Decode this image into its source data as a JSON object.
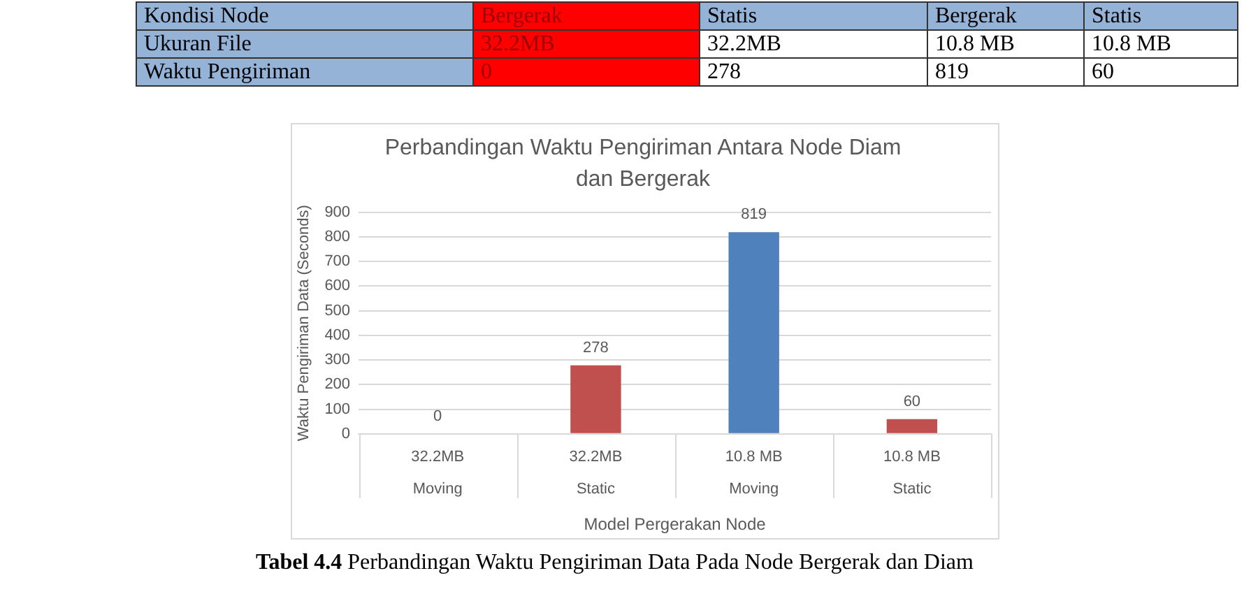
{
  "chart_data": [
    {
      "type": "other",
      "annotations": [
        "Kondisi Node",
        "Bergerak",
        "Statis",
        "Bergerak",
        "Statis",
        "Ukuran File",
        "32.2MB",
        "32.2MB",
        "10.8 MB",
        "10.8 MB",
        "Waktu Pengiriman",
        "0",
        "278",
        "819",
        "60"
      ]
    },
    {
      "type": "bar",
      "title": "Perbandingan Waktu Pengiriman Antara Node Diam dan Bergerak",
      "xlabel": "Model Pergerakan Node",
      "ylabel": "Waktu Pengiriman Data (Seconds)",
      "categories": [
        "32.2MB\nMoving",
        "32.2MB\nStatic",
        "10.8 MB\nMoving",
        "10.8 MB\nStatic"
      ],
      "values": [
        0,
        278,
        819,
        60
      ],
      "colors": [
        "#4f81bd",
        "#c0504d",
        "#4f81bd",
        "#c0504d"
      ],
      "ylim": [
        0,
        900
      ],
      "yticks": [
        0,
        100,
        200,
        300,
        400,
        500,
        600,
        700,
        800,
        900
      ],
      "grid": "y",
      "data_labels": true,
      "annotations": [
        "Tabel 4.4",
        "Perbandingan Waktu Pengiriman Data Pada Node Bergerak dan Diam"
      ]
    }
  ]
}
